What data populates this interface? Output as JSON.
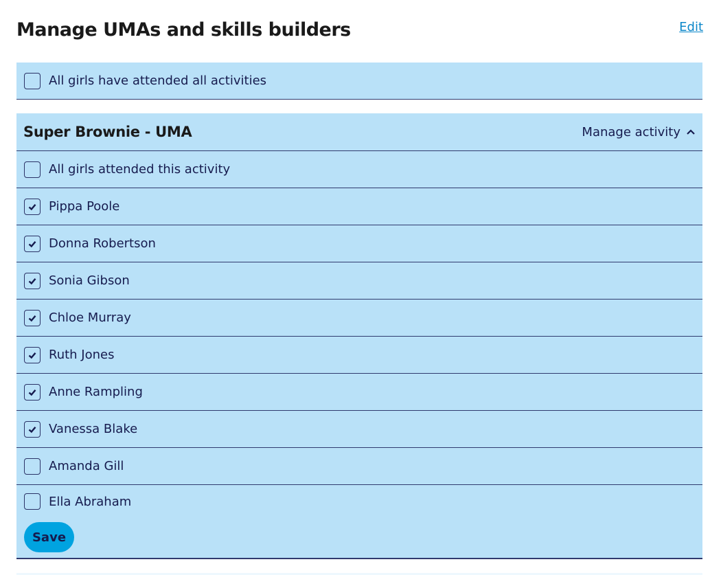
{
  "page": {
    "title": "Manage UMAs and skills builders",
    "edit_label": "Edit"
  },
  "all_attended": {
    "label": "All girls have attended all activities",
    "checked": false
  },
  "activity": {
    "title": "Super Brownie - UMA",
    "manage_label": "Manage activity",
    "all_label": "All girls attended this activity",
    "girls": [
      {
        "name": "Pippa Poole",
        "checked": true
      },
      {
        "name": "Donna Robertson",
        "checked": true
      },
      {
        "name": "Sonia Gibson",
        "checked": true
      },
      {
        "name": "Chloe Murray",
        "checked": true
      },
      {
        "name": "Ruth Jones",
        "checked": true
      },
      {
        "name": "Anne Rampling",
        "checked": true
      },
      {
        "name": "Vanessa Blake",
        "checked": true
      },
      {
        "name": "Amanda Gill",
        "checked": false
      },
      {
        "name": "Ella Abraham",
        "checked": false
      }
    ],
    "save_label": "Save"
  },
  "colors": {
    "panel_bg": "#b9e1f8",
    "text": "#161b4e",
    "save_button": "#00a3e0",
    "link": "#0a86c9"
  }
}
